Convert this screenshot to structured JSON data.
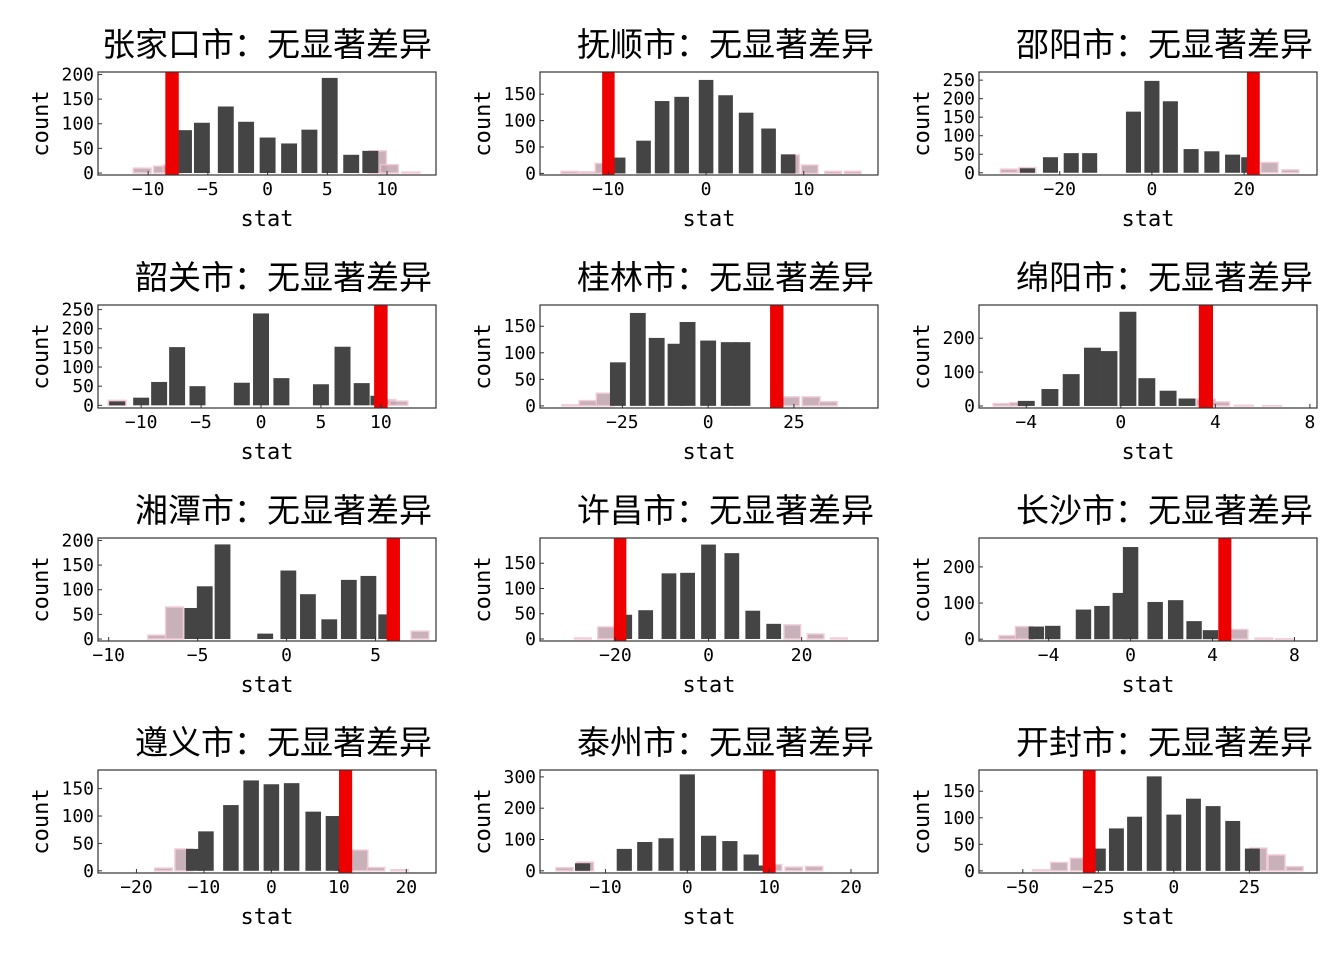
{
  "chart_data": [
    {
      "type": "bar",
      "title": "张家口市：无显著差异",
      "xlabel": "stat",
      "ylabel": "count",
      "xlim": [
        -14.2,
        14.1
      ],
      "ylim": [
        -4,
        205
      ],
      "xticks": [
        -10,
        -5,
        0,
        5,
        10
      ],
      "yticks": [
        0,
        50,
        100,
        150,
        200
      ],
      "observed_stat": -8,
      "bin_width": 1.5,
      "bins_dark": [
        [
          -7,
          87
        ],
        [
          -5.5,
          102
        ],
        [
          -3.5,
          135
        ],
        [
          -1.8,
          104
        ],
        [
          0,
          72
        ],
        [
          1.8,
          60
        ],
        [
          3.5,
          88
        ],
        [
          5.2,
          193
        ],
        [
          7,
          37
        ],
        [
          8.6,
          45
        ]
      ],
      "bins_pink": [
        [
          -10.5,
          10
        ],
        [
          -8.8,
          14
        ],
        [
          -8,
          16
        ],
        [
          9.2,
          45
        ],
        [
          10.2,
          17
        ],
        [
          12,
          2
        ]
      ]
    },
    {
      "type": "bar",
      "title": "抚顺市：无显著差异",
      "xlabel": "stat",
      "ylabel": "count",
      "xlim": [
        -17,
        17.6
      ],
      "ylim": [
        -3,
        192
      ],
      "xticks": [
        -10,
        0,
        10
      ],
      "yticks": [
        0,
        50,
        100,
        150
      ],
      "observed_stat": -10,
      "bin_width": 1.7,
      "bins_dark": [
        [
          -9,
          30
        ],
        [
          -6.4,
          62
        ],
        [
          -4.5,
          137
        ],
        [
          -2.5,
          145
        ],
        [
          0,
          177
        ],
        [
          2,
          148
        ],
        [
          4.1,
          115
        ],
        [
          6.4,
          85
        ],
        [
          8.4,
          36
        ]
      ],
      "bins_pink": [
        [
          -14,
          4
        ],
        [
          -12.2,
          3
        ],
        [
          -10.5,
          19
        ],
        [
          8.7,
          35
        ],
        [
          10.6,
          16
        ],
        [
          13,
          4
        ],
        [
          15,
          4
        ]
      ]
    },
    {
      "type": "bar",
      "title": "邵阳市：无显著差异",
      "xlabel": "stat",
      "ylabel": "count",
      "xlim": [
        -37.5,
        35.8
      ],
      "ylim": [
        -6,
        272
      ],
      "xticks": [
        -20,
        0,
        20
      ],
      "yticks": [
        0,
        50,
        100,
        150,
        200,
        250
      ],
      "observed_stat": 22,
      "bin_width": 3.7,
      "bins_dark": [
        [
          -27,
          12
        ],
        [
          -22,
          42
        ],
        [
          -17.5,
          53
        ],
        [
          -13.5,
          53
        ],
        [
          -4,
          165
        ],
        [
          0,
          248
        ],
        [
          4,
          193
        ],
        [
          8.5,
          64
        ],
        [
          13,
          58
        ],
        [
          17.5,
          49
        ],
        [
          21,
          42
        ]
      ],
      "bins_pink": [
        [
          -31,
          10
        ],
        [
          -27,
          14
        ],
        [
          25.5,
          28
        ],
        [
          30,
          8
        ]
      ]
    },
    {
      "type": "bar",
      "title": "韶关市：无显著差异",
      "xlabel": "stat",
      "ylabel": "count",
      "xlim": [
        -13.6,
        14.6
      ],
      "ylim": [
        -7,
        262
      ],
      "xticks": [
        -10,
        -5,
        0,
        5,
        10
      ],
      "yticks": [
        0,
        50,
        100,
        150,
        200,
        250
      ],
      "observed_stat": 10,
      "bin_width": 1.5,
      "bins_dark": [
        [
          -12,
          10
        ],
        [
          -10,
          20
        ],
        [
          -8.5,
          61
        ],
        [
          -7,
          152
        ],
        [
          -5.3,
          50
        ],
        [
          -1.6,
          59
        ],
        [
          0,
          240
        ],
        [
          1.7,
          71
        ],
        [
          5,
          55
        ],
        [
          6.8,
          153
        ],
        [
          8.4,
          58
        ],
        [
          9.8,
          25
        ]
      ],
      "bins_pink": [
        [
          -12,
          13
        ],
        [
          10.5,
          15
        ],
        [
          11.5,
          11
        ]
      ]
    },
    {
      "type": "bar",
      "title": "桂林市：无显著差异",
      "xlabel": "stat",
      "ylabel": "count",
      "xlim": [
        -49,
        49.5
      ],
      "ylim": [
        -4,
        190
      ],
      "xticks": [
        -25,
        0,
        25
      ],
      "yticks": [
        0,
        50,
        100,
        150
      ],
      "observed_stat": 20,
      "bin_width": 5.2,
      "bins_dark": [
        [
          -26.3,
          82
        ],
        [
          -20.5,
          175
        ],
        [
          -15,
          128
        ],
        [
          -9.5,
          117
        ],
        [
          -6,
          158
        ],
        [
          0,
          123
        ],
        [
          6,
          120
        ],
        [
          10,
          120
        ]
      ],
      "bins_pink": [
        [
          -40,
          2
        ],
        [
          -35,
          10
        ],
        [
          -30,
          24
        ],
        [
          24,
          17
        ],
        [
          30,
          17
        ],
        [
          35,
          8
        ]
      ]
    },
    {
      "type": "bar",
      "title": "绵阳市：无显著差异",
      "xlabel": "stat",
      "ylabel": "count",
      "xlim": [
        -6,
        8.3
      ],
      "ylim": [
        -6,
        298
      ],
      "xticks": [
        -4,
        0,
        4,
        8
      ],
      "yticks": [
        0,
        100,
        200
      ],
      "observed_stat": 3.6,
      "bin_width": 0.8,
      "bins_dark": [
        [
          -4,
          15
        ],
        [
          -3,
          50
        ],
        [
          -2.1,
          94
        ],
        [
          -1.2,
          172
        ],
        [
          -0.5,
          162
        ],
        [
          0.3,
          278
        ],
        [
          1.1,
          82
        ],
        [
          2,
          45
        ],
        [
          2.8,
          22
        ]
      ],
      "bins_pink": [
        [
          -5,
          7
        ],
        [
          -4.3,
          10
        ],
        [
          3.6,
          20
        ],
        [
          4.2,
          12
        ],
        [
          5.2,
          2
        ],
        [
          6.4,
          1
        ]
      ]
    },
    {
      "type": "bar",
      "title": "湘潭市：无显著差异",
      "xlabel": "stat",
      "ylabel": "count",
      "xlim": [
        -10.6,
        8.4
      ],
      "ylim": [
        -4,
        205
      ],
      "xticks": [
        -10,
        -5,
        0,
        5
      ],
      "yticks": [
        0,
        50,
        100,
        150,
        200
      ],
      "observed_stat": 6,
      "bin_width": 1.0,
      "bins_dark": [
        [
          -5.3,
          63
        ],
        [
          -4.6,
          107
        ],
        [
          -3.6,
          192
        ],
        [
          -1.2,
          11
        ],
        [
          0.1,
          139
        ],
        [
          1.2,
          91
        ],
        [
          2.4,
          40
        ],
        [
          3.5,
          120
        ],
        [
          4.6,
          128
        ],
        [
          5.6,
          50
        ]
      ],
      "bins_pink": [
        [
          -7.3,
          8
        ],
        [
          -6.3,
          65
        ],
        [
          7.5,
          16
        ]
      ]
    },
    {
      "type": "bar",
      "title": "许昌市：无显著差异",
      "xlabel": "stat",
      "ylabel": "count",
      "xlim": [
        -36.2,
        36.4
      ],
      "ylim": [
        -4,
        200
      ],
      "xticks": [
        -20,
        0,
        20
      ],
      "yticks": [
        0,
        50,
        100,
        150
      ],
      "observed_stat": -19,
      "bin_width": 3.6,
      "bins_dark": [
        [
          -18,
          48
        ],
        [
          -13.5,
          57
        ],
        [
          -8.5,
          130
        ],
        [
          -4.5,
          131
        ],
        [
          0,
          187
        ],
        [
          5,
          170
        ],
        [
          9.5,
          56
        ],
        [
          14,
          30
        ]
      ],
      "bins_pink": [
        [
          -27,
          2
        ],
        [
          -22,
          24
        ],
        [
          18,
          28
        ],
        [
          23,
          10
        ],
        [
          28,
          2
        ]
      ]
    },
    {
      "type": "bar",
      "title": "长沙市：无显著差异",
      "xlabel": "stat",
      "ylabel": "count",
      "xlim": [
        -7.4,
        9.1
      ],
      "ylim": [
        -5,
        280
      ],
      "xticks": [
        -4,
        0,
        4,
        8
      ],
      "yticks": [
        0,
        100,
        200
      ],
      "observed_stat": 4.6,
      "bin_width": 0.85,
      "bins_dark": [
        [
          -4.6,
          35
        ],
        [
          -3.8,
          37
        ],
        [
          -2.3,
          82
        ],
        [
          -1.4,
          92
        ],
        [
          -0.5,
          128
        ],
        [
          0,
          255
        ],
        [
          1.2,
          103
        ],
        [
          2.2,
          108
        ],
        [
          3.1,
          50
        ],
        [
          3.9,
          25
        ]
      ],
      "bins_pink": [
        [
          -6,
          10
        ],
        [
          -5.2,
          35
        ],
        [
          5.3,
          27
        ],
        [
          6.5,
          3
        ],
        [
          7.5,
          1
        ]
      ]
    },
    {
      "type": "bar",
      "title": "遵义市：无显著差异",
      "xlabel": "stat",
      "ylabel": "count",
      "xlim": [
        -25.7,
        24.4
      ],
      "ylim": [
        -4,
        184
      ],
      "xticks": [
        -20,
        -10,
        0,
        10,
        20
      ],
      "yticks": [
        0,
        50,
        100,
        150
      ],
      "observed_stat": 11,
      "bin_width": 2.6,
      "bins_dark": [
        [
          -11.5,
          40
        ],
        [
          -9.7,
          72
        ],
        [
          -6,
          120
        ],
        [
          -3,
          165
        ],
        [
          0,
          158
        ],
        [
          3,
          160
        ],
        [
          6.2,
          108
        ],
        [
          9.2,
          100
        ],
        [
          10.5,
          25
        ]
      ],
      "bins_pink": [
        [
          -16,
          5
        ],
        [
          -13,
          40
        ],
        [
          13,
          38
        ],
        [
          15.5,
          6
        ],
        [
          19,
          2
        ]
      ]
    },
    {
      "type": "bar",
      "title": "泰州市：无显著差异",
      "xlabel": "stat",
      "ylabel": "count",
      "xlim": [
        -18,
        23.3
      ],
      "ylim": [
        -7,
        322
      ],
      "xticks": [
        -10,
        0,
        10,
        20
      ],
      "yticks": [
        0,
        100,
        200,
        300
      ],
      "observed_stat": 10,
      "bin_width": 2.1,
      "bins_dark": [
        [
          -12.8,
          24
        ],
        [
          -7.7,
          70
        ],
        [
          -5.2,
          92
        ],
        [
          -2.6,
          104
        ],
        [
          0,
          308
        ],
        [
          2.6,
          112
        ],
        [
          5.2,
          95
        ],
        [
          7.8,
          52
        ],
        [
          9.5,
          17
        ]
      ],
      "bins_pink": [
        [
          -15,
          10
        ],
        [
          -12.5,
          28
        ],
        [
          10.5,
          20
        ],
        [
          13,
          12
        ],
        [
          15.5,
          14
        ]
      ]
    },
    {
      "type": "bar",
      "title": "开封市：无显著差异",
      "xlabel": "stat",
      "ylabel": "count",
      "xlim": [
        -64.5,
        47.4
      ],
      "ylim": [
        -4,
        190
      ],
      "xticks": [
        -50,
        -25,
        0,
        25
      ],
      "yticks": [
        0,
        50,
        100,
        150
      ],
      "observed_stat": -28,
      "bin_width": 5.6,
      "bins_dark": [
        [
          -25,
          42
        ],
        [
          -19,
          80
        ],
        [
          -13,
          102
        ],
        [
          -6.5,
          178
        ],
        [
          0,
          106
        ],
        [
          6.5,
          136
        ],
        [
          13,
          122
        ],
        [
          19.5,
          94
        ],
        [
          26,
          42
        ]
      ],
      "bins_pink": [
        [
          -44,
          2
        ],
        [
          -38,
          16
        ],
        [
          -31.5,
          24
        ],
        [
          28,
          43
        ],
        [
          34,
          30
        ],
        [
          40,
          8
        ]
      ]
    }
  ]
}
